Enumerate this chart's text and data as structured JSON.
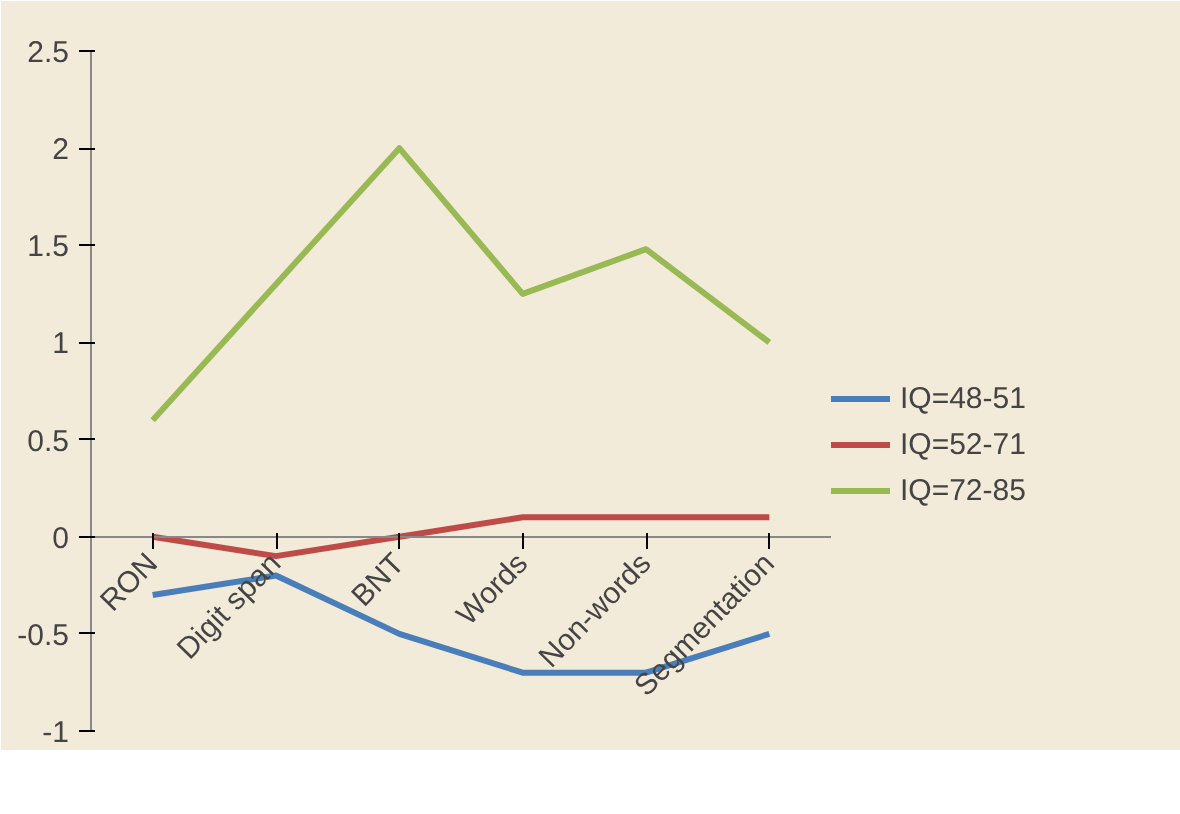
{
  "chart_data": {
    "type": "line",
    "categories": [
      "RON",
      "Digit span",
      "BNT",
      "Words",
      "Non-words",
      "Segmentation"
    ],
    "series": [
      {
        "name": "IQ=48-51",
        "color": "#4a7ebb",
        "values": [
          -0.3,
          -0.2,
          -0.5,
          -0.7,
          -0.7,
          -0.5
        ]
      },
      {
        "name": "IQ=52-71",
        "color": "#be4b48",
        "values": [
          0,
          -0.1,
          0,
          0.1,
          0.1,
          0.1
        ]
      },
      {
        "name": "IQ=72-85",
        "color": "#98b954",
        "values": [
          0.6,
          1.3,
          2.0,
          1.25,
          1.48,
          1.0
        ]
      }
    ],
    "ylim": [
      -1,
      2.5
    ],
    "yticks": [
      -1,
      -0.5,
      0,
      0.5,
      1,
      1.5,
      2,
      2.5
    ],
    "grid": false,
    "legend": "right",
    "marker": "none",
    "line_style": "solid"
  }
}
